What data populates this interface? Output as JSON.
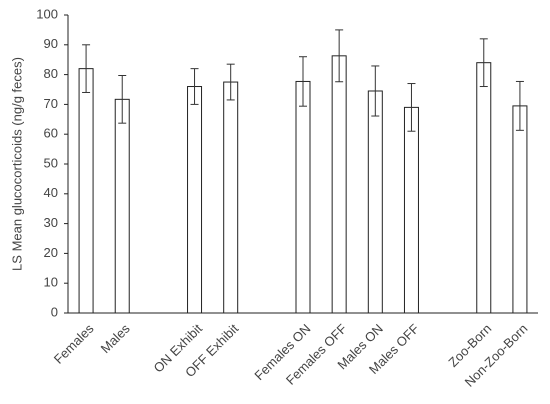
{
  "chart_data": {
    "type": "bar",
    "y_label": "LS Mean glucocorticoids (ng/g feces)",
    "categories": [
      "Females",
      "Males",
      null,
      "ON Exhibit",
      "OFF Exhibit",
      null,
      "Females ON",
      "Females OFF",
      "Males ON",
      "Males OFF",
      null,
      "Zoo-Born",
      "Non-Zoo-Born"
    ],
    "values": [
      82,
      71.7,
      null,
      76,
      77.5,
      null,
      77.7,
      86.3,
      74.5,
      69,
      null,
      84,
      69.5
    ],
    "errors": [
      8,
      8,
      null,
      6,
      6,
      null,
      8.3,
      8.7,
      8.4,
      8,
      null,
      8,
      8.2
    ],
    "color": "#ffffff",
    "ylim": [
      0,
      100
    ],
    "yticks": [
      0,
      10,
      20,
      30,
      40,
      50,
      60,
      70,
      80,
      90,
      100
    ],
    "grid": false
  }
}
